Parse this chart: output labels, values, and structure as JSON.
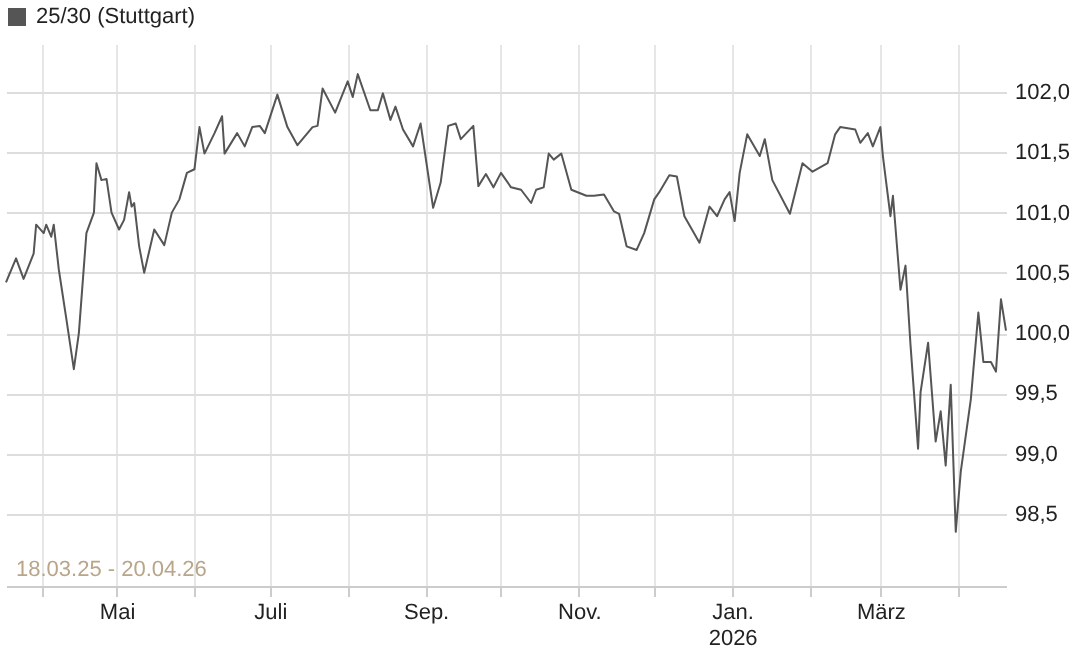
{
  "chart_data": {
    "type": "line",
    "annotations": [
      "18.03.25 - 20.04.26"
    ],
    "x": [
      "2025-03-18",
      "2025-03-22",
      "2025-03-25",
      "2025-03-29",
      "2025-03-30",
      "2025-04-02",
      "2025-04-03",
      "2025-04-05",
      "2025-04-06",
      "2025-04-08",
      "2025-04-11",
      "2025-04-14",
      "2025-04-16",
      "2025-04-19",
      "2025-04-22",
      "2025-04-23",
      "2025-04-25",
      "2025-04-27",
      "2025-04-29",
      "2025-05-02",
      "2025-05-04",
      "2025-05-06",
      "2025-05-07",
      "2025-05-08",
      "2025-05-10",
      "2025-05-12",
      "2025-05-16",
      "2025-05-20",
      "2025-05-23",
      "2025-05-26",
      "2025-05-29",
      "2025-06-01",
      "2025-06-03",
      "2025-06-05",
      "2025-06-09",
      "2025-06-12",
      "2025-06-13",
      "2025-06-18",
      "2025-06-21",
      "2025-06-24",
      "2025-06-27",
      "2025-06-29",
      "2025-07-04",
      "2025-07-08",
      "2025-07-12",
      "2025-07-18",
      "2025-07-20",
      "2025-07-22",
      "2025-07-27",
      "2025-08-01",
      "2025-08-03",
      "2025-08-05",
      "2025-08-10",
      "2025-08-13",
      "2025-08-15",
      "2025-08-18",
      "2025-08-20",
      "2025-08-23",
      "2025-08-27",
      "2025-08-30",
      "2025-09-04",
      "2025-09-07",
      "2025-09-10",
      "2025-09-13",
      "2025-09-15",
      "2025-09-20",
      "2025-09-22",
      "2025-09-25",
      "2025-09-28",
      "2025-10-01",
      "2025-10-05",
      "2025-10-09",
      "2025-10-13",
      "2025-10-15",
      "2025-10-18",
      "2025-10-20",
      "2025-10-22",
      "2025-10-25",
      "2025-10-29",
      "2025-11-04",
      "2025-11-07",
      "2025-11-11",
      "2025-11-15",
      "2025-11-17",
      "2025-11-20",
      "2025-11-24",
      "2025-11-27",
      "2025-12-01",
      "2025-12-03",
      "2025-12-07",
      "2025-12-10",
      "2025-12-13",
      "2025-12-16",
      "2025-12-19",
      "2025-12-23",
      "2025-12-26",
      "2025-12-29",
      "2025-12-31",
      "2026-01-02",
      "2026-01-04",
      "2026-01-07",
      "2026-01-12",
      "2026-01-14",
      "2026-01-17",
      "2026-01-24",
      "2026-01-29",
      "2026-02-02",
      "2026-02-08",
      "2026-02-11",
      "2026-02-13",
      "2026-02-19",
      "2026-02-21",
      "2026-02-24",
      "2026-02-26",
      "2026-03-01",
      "2026-03-02",
      "2026-03-05",
      "2026-03-06",
      "2026-03-09",
      "2026-03-11",
      "2026-03-13",
      "2026-03-16",
      "2026-03-17",
      "2026-03-20",
      "2026-03-23",
      "2026-03-25",
      "2026-03-27",
      "2026-03-29",
      "2026-03-31",
      "2026-04-02",
      "2026-04-06",
      "2026-04-09",
      "2026-04-11",
      "2026-04-14",
      "2026-04-16",
      "2026-04-18",
      "2026-04-20"
    ],
    "series": [
      {
        "name": "25/30 (Stuttgart)",
        "color": "#555555",
        "values": [
          100.42,
          100.62,
          100.45,
          100.66,
          100.9,
          100.83,
          100.9,
          100.8,
          100.9,
          100.53,
          100.12,
          99.7,
          100.0,
          100.83,
          101.0,
          101.41,
          101.27,
          101.28,
          101.0,
          100.86,
          100.94,
          101.17,
          101.05,
          101.08,
          100.72,
          100.5,
          100.86,
          100.73,
          101.0,
          101.11,
          101.33,
          101.36,
          101.71,
          101.49,
          101.66,
          101.8,
          101.49,
          101.66,
          101.55,
          101.71,
          101.72,
          101.66,
          101.98,
          101.71,
          101.56,
          101.71,
          101.72,
          102.03,
          101.83,
          102.09,
          101.96,
          102.15,
          101.85,
          101.85,
          101.99,
          101.77,
          101.88,
          101.69,
          101.55,
          101.74,
          101.04,
          101.25,
          101.72,
          101.74,
          101.61,
          101.72,
          101.22,
          101.32,
          101.21,
          101.33,
          101.21,
          101.19,
          101.08,
          101.19,
          101.21,
          101.49,
          101.44,
          101.49,
          101.19,
          101.14,
          101.14,
          101.15,
          101.01,
          100.99,
          100.72,
          100.69,
          100.83,
          101.11,
          101.17,
          101.31,
          101.3,
          100.97,
          100.86,
          100.75,
          101.05,
          100.97,
          101.11,
          101.17,
          100.93,
          101.33,
          101.65,
          101.47,
          101.61,
          101.27,
          100.99,
          101.41,
          101.34,
          101.41,
          101.65,
          101.71,
          101.69,
          101.58,
          101.66,
          101.55,
          101.71,
          101.47,
          100.97,
          101.14,
          100.36,
          100.56,
          99.9,
          99.04,
          99.51,
          99.92,
          99.1,
          99.35,
          98.9,
          99.57,
          98.35,
          98.85,
          99.45,
          100.17,
          99.76,
          99.76,
          99.68,
          100.28,
          100.02
        ]
      }
    ],
    "xlim": [
      "2025-03-18",
      "2026-04-20"
    ],
    "xticks": [
      {
        "value": "2025-04-01",
        "label": null
      },
      {
        "value": "2025-05-01",
        "label": "Mai"
      },
      {
        "value": "2025-06-01",
        "label": null
      },
      {
        "value": "2025-07-01",
        "label": "Juli"
      },
      {
        "value": "2025-08-01",
        "label": null
      },
      {
        "value": "2025-09-01",
        "label": "Sep."
      },
      {
        "value": "2025-10-01",
        "label": null
      },
      {
        "value": "2025-11-01",
        "label": "Nov."
      },
      {
        "value": "2025-12-01",
        "label": null
      },
      {
        "value": "2026-01-01",
        "label": "Jan.\n2026"
      },
      {
        "value": "2026-02-01",
        "label": null
      },
      {
        "value": "2026-03-01",
        "label": "März"
      },
      {
        "value": "2026-04-01",
        "label": null
      }
    ],
    "ylim": [
      97.9,
      102.4
    ],
    "yticks": [
      {
        "value": 98.5,
        "label": "98,5"
      },
      {
        "value": 99,
        "label": "99,0"
      },
      {
        "value": 99.5,
        "label": "99,5"
      },
      {
        "value": 100,
        "label": "100,0"
      },
      {
        "value": 100.5,
        "label": "100,5"
      },
      {
        "value": 101,
        "label": "101,0"
      },
      {
        "value": 101.5,
        "label": "101,5"
      },
      {
        "value": 102,
        "label": "102,0"
      }
    ],
    "grid": true,
    "legend": "top left",
    "marker": "none",
    "line_style": "solid"
  }
}
